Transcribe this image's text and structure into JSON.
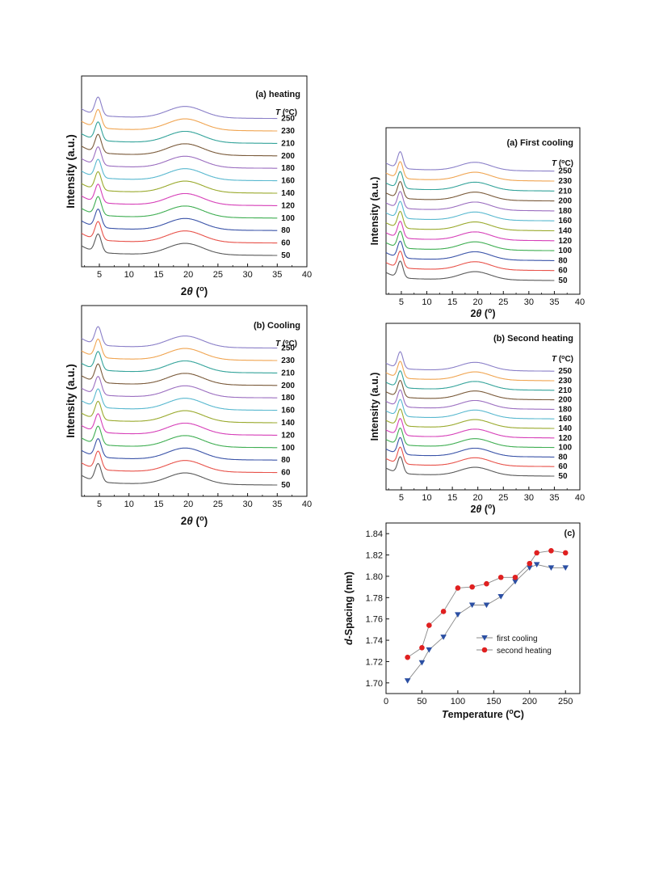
{
  "chart_data": [
    {
      "type": "line",
      "title": "(a) heating",
      "legend_title": "T (°C)",
      "xlabel": "2θ (°)",
      "ylabel": "Intensity (a.u.)",
      "xlim": [
        2,
        40
      ],
      "x_ticks": [
        "5",
        "10",
        "15",
        "20",
        "25",
        "30",
        "35",
        "40"
      ],
      "series_labels": [
        "50",
        "60",
        "80",
        "100",
        "120",
        "140",
        "160",
        "180",
        "200",
        "210",
        "230",
        "250"
      ],
      "peak1_x": 4.8,
      "peak2_x": 19.5
    },
    {
      "type": "line",
      "title": "(b) Cooling",
      "legend_title": "T (°C)",
      "xlabel": "2θ (°)",
      "ylabel": "Intensity (a.u.)",
      "xlim": [
        2,
        40
      ],
      "x_ticks": [
        "5",
        "10",
        "15",
        "20",
        "25",
        "30",
        "35",
        "40"
      ],
      "series_labels": [
        "50",
        "60",
        "80",
        "100",
        "120",
        "140",
        "160",
        "180",
        "200",
        "210",
        "230",
        "250"
      ],
      "peak1_x": 4.8,
      "peak2_x": 19.5
    },
    {
      "type": "line",
      "title": "(a) First cooling",
      "legend_title": "T (°C)",
      "xlabel": "2θ (°)",
      "ylabel": "Intensity (a.u.)",
      "xlim": [
        2,
        40
      ],
      "x_ticks": [
        "5",
        "10",
        "15",
        "20",
        "25",
        "30",
        "35",
        "40"
      ],
      "series_labels": [
        "50",
        "60",
        "80",
        "100",
        "120",
        "140",
        "160",
        "180",
        "200",
        "210",
        "230",
        "250"
      ],
      "peak1_x": 4.8,
      "peak2_x": 19.5
    },
    {
      "type": "line",
      "title": "(b) Second heating",
      "legend_title": "T (°C)",
      "xlabel": "2θ (°)",
      "ylabel": "Intensity (a.u.)",
      "xlim": [
        2,
        40
      ],
      "x_ticks": [
        "5",
        "10",
        "15",
        "20",
        "25",
        "30",
        "35",
        "40"
      ],
      "series_labels": [
        "50",
        "60",
        "80",
        "100",
        "120",
        "140",
        "160",
        "180",
        "200",
        "210",
        "230",
        "250"
      ],
      "peak1_x": 4.8,
      "peak2_x": 19.5
    },
    {
      "type": "scatter",
      "title": "(c)",
      "xlabel": "Temperature (°C)",
      "ylabel": "d-Spacing (nm)",
      "xlim": [
        0,
        270
      ],
      "ylim": [
        1.69,
        1.85
      ],
      "x_ticks": [
        "0",
        "50",
        "100",
        "150",
        "200",
        "250"
      ],
      "y_ticks": [
        "1.70",
        "1.72",
        "1.74",
        "1.76",
        "1.78",
        "1.80",
        "1.82",
        "1.84"
      ],
      "legend_position": "center-right",
      "series": [
        {
          "name": "first cooling",
          "color": "#2b4fa3",
          "marker": "triangle-down",
          "x": [
            30,
            50,
            60,
            80,
            100,
            120,
            140,
            160,
            180,
            200,
            210,
            230,
            250
          ],
          "y": [
            1.702,
            1.719,
            1.731,
            1.743,
            1.764,
            1.773,
            1.773,
            1.781,
            1.795,
            1.808,
            1.811,
            1.808,
            1.808
          ]
        },
        {
          "name": "second heating",
          "color": "#e02020",
          "marker": "circle",
          "x": [
            30,
            50,
            60,
            80,
            100,
            120,
            140,
            160,
            180,
            200,
            210,
            230,
            250
          ],
          "y": [
            1.724,
            1.733,
            1.754,
            1.767,
            1.789,
            1.79,
            1.793,
            1.799,
            1.799,
            1.812,
            1.822,
            1.824,
            1.822
          ]
        }
      ]
    }
  ]
}
